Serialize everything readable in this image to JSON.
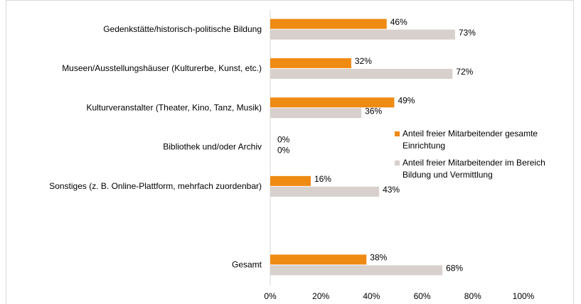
{
  "chart_data": {
    "type": "hbar",
    "categories": [
      "Gedenkstätte/historisch-politische Bildung",
      "Museen/Ausstellungshäuser (Kulturerbe, Kunst, etc.)",
      "Kulturveranstalter (Theater, Kino, Tanz, Musik)",
      "Bibliothek und/oder Archiv",
      "Sonstiges (z. B. Online-Plattform, mehrfach zuordenbar)",
      null,
      "Gesamt"
    ],
    "series": [
      {
        "name": "Anteil freier Mitarbeitender gesamte Einrichtung",
        "color": "#ef8a13",
        "values": [
          46,
          32,
          49,
          0,
          16,
          null,
          38
        ],
        "value_labels": [
          "46%",
          "32%",
          "49%",
          "0%",
          "16%",
          null,
          "38%"
        ]
      },
      {
        "name": "Anteil freier Mitarbeitender im Bereich Bildung und Vermittlung",
        "color": "#d7d0cc",
        "values": [
          73,
          72,
          36,
          0,
          43,
          null,
          68
        ],
        "value_labels": [
          "73%",
          "72%",
          "36%",
          "0%",
          "43%",
          null,
          "68%"
        ]
      }
    ],
    "xlim": [
      0,
      100
    ],
    "xticks": [
      {
        "value": 0,
        "label": "0%"
      },
      {
        "value": 20,
        "label": "20%"
      },
      {
        "value": 40,
        "label": "40%"
      },
      {
        "value": 60,
        "label": "60%"
      },
      {
        "value": 80,
        "label": "80%"
      },
      {
        "value": 100,
        "label": "100%"
      }
    ]
  }
}
